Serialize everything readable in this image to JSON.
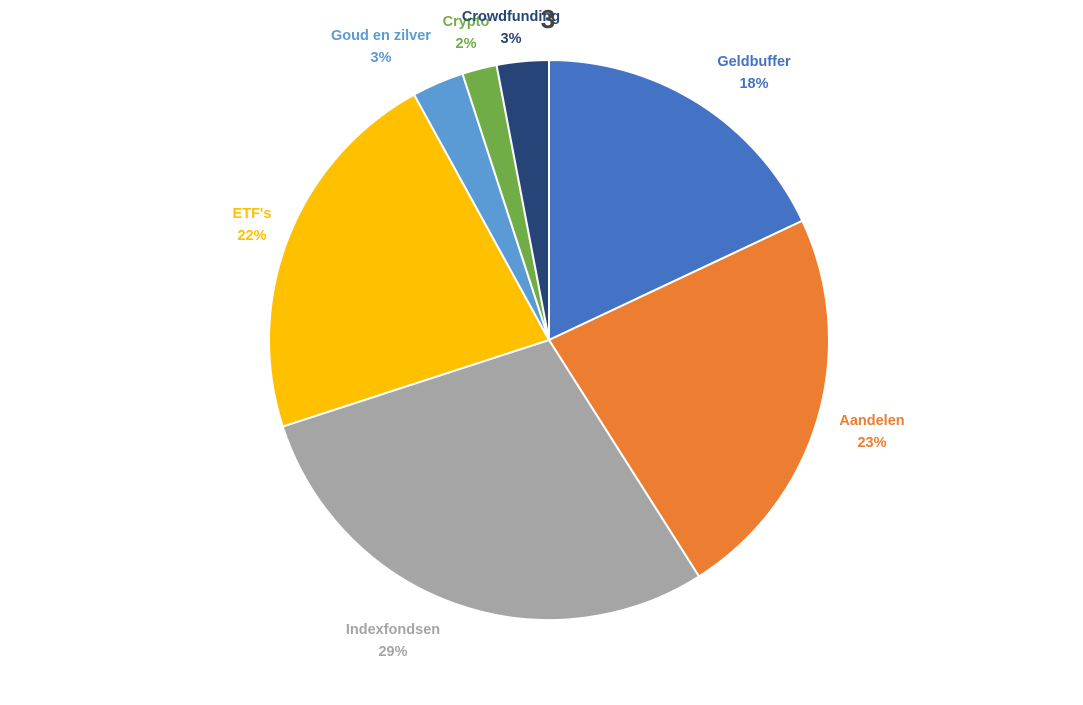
{
  "chart_data": {
    "type": "pie",
    "title": "",
    "slices": [
      {
        "label": "Geldbuffer",
        "value": 18,
        "percent_label": "18%",
        "color": "#4472C4"
      },
      {
        "label": "Aandelen",
        "value": 23,
        "percent_label": "23%",
        "color": "#ED7D31"
      },
      {
        "label": "Indexfondsen",
        "value": 29,
        "percent_label": "29%",
        "color": "#A5A5A5"
      },
      {
        "label": "ETF's",
        "value": 22,
        "percent_label": "22%",
        "color": "#FFC000"
      },
      {
        "label": "Goud en zilver",
        "value": 3,
        "percent_label": "3%",
        "color": "#5B9BD5"
      },
      {
        "label": "Crypto",
        "value": 2,
        "percent_label": "2%",
        "color": "#70AD47"
      },
      {
        "label": "Crowdfunding",
        "value": 3,
        "percent_label": "3%",
        "color": "#264478"
      }
    ],
    "stray_glyph": "3",
    "start_angle": "12 o'clock",
    "direction": "clockwise",
    "legend": "none"
  }
}
